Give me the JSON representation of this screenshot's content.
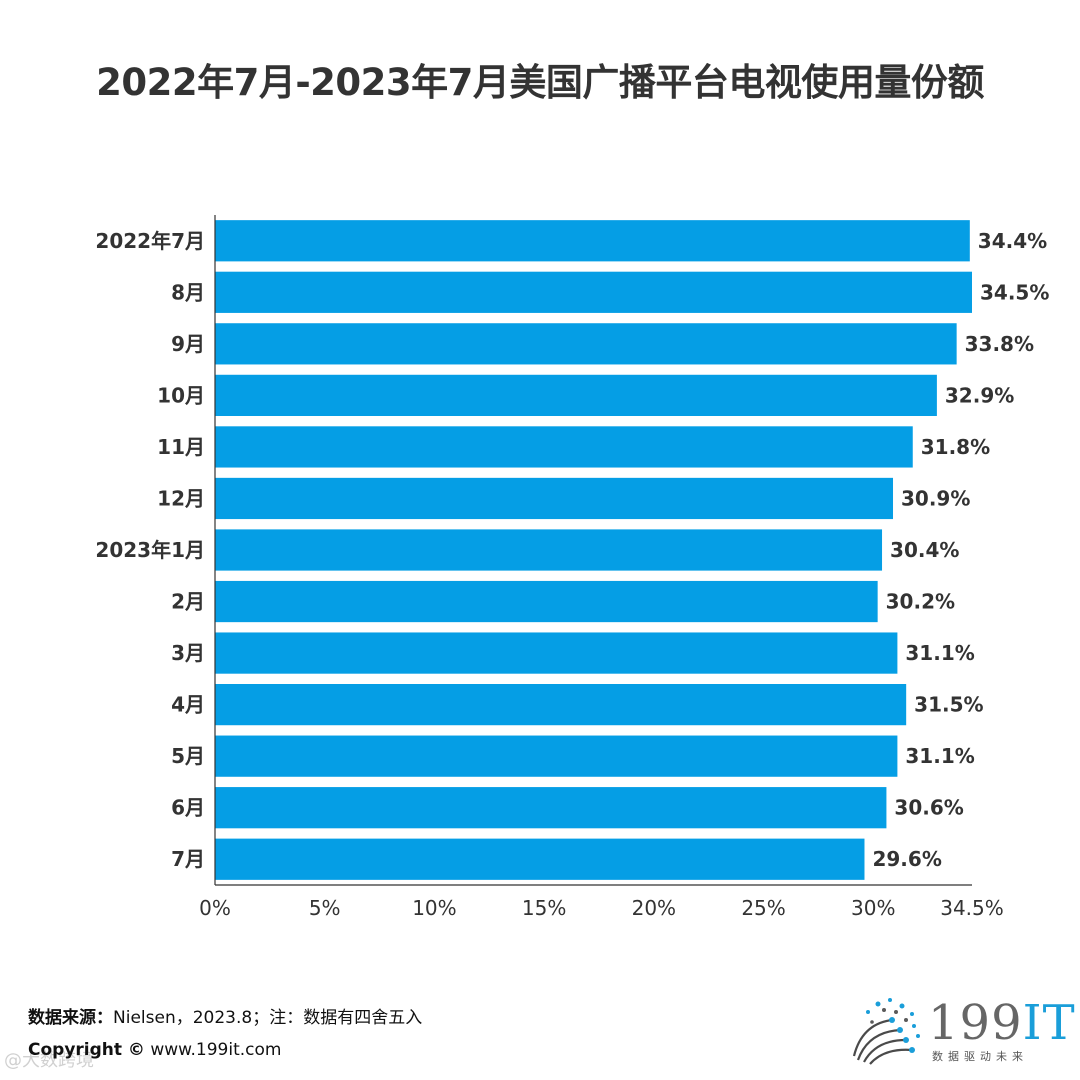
{
  "title": "2022年7月-2023年7月美国广播平台电视使用量份额",
  "chart_data": {
    "type": "bar",
    "orientation": "horizontal",
    "title": "2022年7月-2023年7月美国广播平台电视使用量份额",
    "categories": [
      "2022年7月",
      "8月",
      "9月",
      "10月",
      "11月",
      "12月",
      "2023年1月",
      "2月",
      "3月",
      "4月",
      "5月",
      "6月",
      "7月"
    ],
    "values": [
      34.4,
      34.5,
      33.8,
      32.9,
      31.8,
      30.9,
      30.4,
      30.2,
      31.1,
      31.5,
      31.1,
      30.6,
      29.6
    ],
    "value_labels": [
      "34.4%",
      "34.5%",
      "33.8%",
      "32.9%",
      "31.8%",
      "30.9%",
      "30.4%",
      "30.2%",
      "31.1%",
      "31.5%",
      "31.1%",
      "30.6%",
      "29.6%"
    ],
    "xticks": [
      0,
      5,
      10,
      15,
      20,
      25,
      30,
      34.5
    ],
    "xtick_labels": [
      "0%",
      "5%",
      "10%",
      "15%",
      "20%",
      "25%",
      "30%",
      "34.5%"
    ],
    "xlim": [
      0,
      34.5
    ],
    "bar_color": "#059ee5",
    "xlabel": "",
    "ylabel": "",
    "grid": false
  },
  "footer": {
    "source_label": "数据来源：",
    "source_text": "Nielsen，2023.8；注：数据有四舍五入",
    "copyright_label": "Copyright ©",
    "copyright_text": "www.199it.com"
  },
  "watermark": "@大数跨境",
  "logo": {
    "text_num": "199",
    "text_it": "IT",
    "subtitle": "数据驱动未来"
  }
}
